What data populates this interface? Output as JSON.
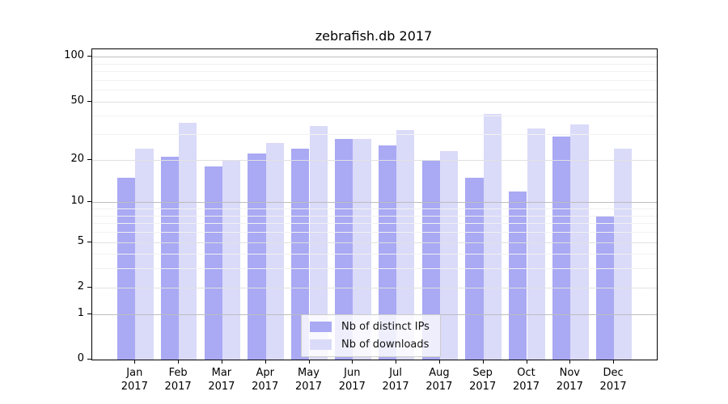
{
  "chart_data": {
    "type": "bar",
    "title": "zebrafish.db 2017",
    "categories": [
      "Jan",
      "Feb",
      "Mar",
      "Apr",
      "May",
      "Jun",
      "Jul",
      "Aug",
      "Sep",
      "Oct",
      "Nov",
      "Dec"
    ],
    "x_year": "2017",
    "series": [
      {
        "name": "Nb of distinct IPs",
        "color": "#a9a9f4",
        "values": [
          15,
          21,
          18,
          22,
          24,
          28,
          25,
          20,
          15,
          12,
          29,
          8
        ]
      },
      {
        "name": "Nb of downloads",
        "color": "#dadaf9",
        "values": [
          24,
          36,
          20,
          26,
          34,
          28,
          32,
          23,
          41,
          33,
          35,
          24
        ]
      }
    ],
    "y_scale": "symlog",
    "y_ticks": [
      0,
      1,
      2,
      5,
      10,
      20,
      50,
      100
    ],
    "y_minor_gridlines": [
      3,
      4,
      6,
      7,
      8,
      9,
      30,
      40,
      60,
      70,
      80,
      90
    ],
    "y_max": 112,
    "ylim": [
      0,
      112
    ],
    "grid": true,
    "legend_position": "lower center",
    "colors": {
      "decade_gridline": "#bdbdbd",
      "mid_gridline": "#e1e1e1",
      "minor_gridline": "#f1f1f1",
      "axis": "#000000",
      "legend_border": "#cccccc"
    }
  }
}
